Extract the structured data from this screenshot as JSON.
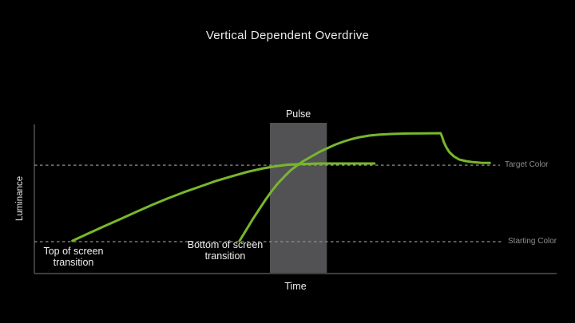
{
  "chart_data": {
    "type": "line",
    "title": "Vertical Dependent Overdrive",
    "xlabel": "Time",
    "ylabel": "Luminance",
    "xlim": [
      0,
      1
    ],
    "ylim": [
      0,
      1
    ],
    "grid": false,
    "legend_position": "none",
    "background_color": "#000000",
    "axis_color": "#3d3d41",
    "line_color": "#78b72b",
    "dash_color": "#8f8f8f",
    "ref_label_color": "#8d8d8d",
    "pulse_band": {
      "label": "Pulse",
      "x_start": 0.451,
      "x_end": 0.56,
      "color": "#525255"
    },
    "reference_lines": [
      {
        "label": "Target Color",
        "level": 0.727
      },
      {
        "label": "Starting Color",
        "level": 0.214
      }
    ],
    "series": [
      {
        "name": "Top of screen transition",
        "points": [
          [
            0.073,
            0.219
          ],
          [
            0.102,
            0.267
          ],
          [
            0.133,
            0.316
          ],
          [
            0.164,
            0.364
          ],
          [
            0.194,
            0.412
          ],
          [
            0.225,
            0.46
          ],
          [
            0.255,
            0.503
          ],
          [
            0.286,
            0.545
          ],
          [
            0.317,
            0.583
          ],
          [
            0.347,
            0.62
          ],
          [
            0.378,
            0.652
          ],
          [
            0.408,
            0.682
          ],
          [
            0.439,
            0.706
          ],
          [
            0.462,
            0.719
          ],
          [
            0.485,
            0.73
          ],
          [
            0.515,
            0.735
          ],
          [
            0.546,
            0.738
          ],
          [
            0.576,
            0.738
          ],
          [
            0.607,
            0.738
          ],
          [
            0.63,
            0.738
          ],
          [
            0.651,
            0.738
          ]
        ]
      },
      {
        "name": "Bottom of screen transition",
        "points": [
          [
            0.393,
            0.219
          ],
          [
            0.405,
            0.289
          ],
          [
            0.417,
            0.358
          ],
          [
            0.43,
            0.428
          ],
          [
            0.442,
            0.492
          ],
          [
            0.454,
            0.551
          ],
          [
            0.466,
            0.604
          ],
          [
            0.479,
            0.652
          ],
          [
            0.491,
            0.693
          ],
          [
            0.503,
            0.725
          ],
          [
            0.515,
            0.754
          ],
          [
            0.531,
            0.786
          ],
          [
            0.546,
            0.816
          ],
          [
            0.561,
            0.84
          ],
          [
            0.576,
            0.864
          ],
          [
            0.592,
            0.885
          ],
          [
            0.607,
            0.901
          ],
          [
            0.622,
            0.914
          ],
          [
            0.641,
            0.925
          ],
          [
            0.661,
            0.932
          ],
          [
            0.683,
            0.936
          ],
          [
            0.714,
            0.939
          ],
          [
            0.745,
            0.94
          ],
          [
            0.778,
            0.941
          ],
          [
            0.781,
            0.914
          ],
          [
            0.784,
            0.882
          ],
          [
            0.789,
            0.845
          ],
          [
            0.795,
            0.813
          ],
          [
            0.803,
            0.786
          ],
          [
            0.813,
            0.765
          ],
          [
            0.826,
            0.754
          ],
          [
            0.84,
            0.747
          ],
          [
            0.855,
            0.743
          ],
          [
            0.872,
            0.742
          ]
        ]
      }
    ]
  }
}
